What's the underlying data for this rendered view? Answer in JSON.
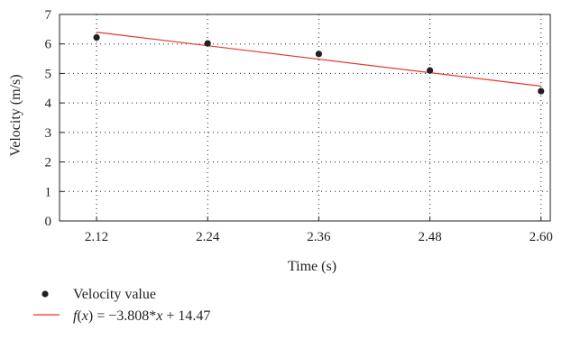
{
  "chart_data": {
    "type": "scatter",
    "title": "",
    "xlabel": "Time (s)",
    "ylabel": "Velocity (m/s)",
    "xlim": [
      2.08,
      2.61
    ],
    "ylim": [
      0,
      7
    ],
    "x_ticks": [
      "2.12",
      "2.24",
      "2.36",
      "2.48",
      "2.60"
    ],
    "y_ticks": [
      "0",
      "1",
      "2",
      "3",
      "4",
      "5",
      "6",
      "7"
    ],
    "grid": true,
    "legend_position": "bottom-left",
    "series": [
      {
        "name": "Velocity value",
        "type": "scatter",
        "color": "#231f20",
        "x": [
          2.12,
          2.24,
          2.36,
          2.48,
          2.6
        ],
        "y": [
          6.22,
          6.02,
          5.66,
          5.1,
          4.4
        ]
      },
      {
        "name": "f(x) = −3.808*x + 14.47",
        "legend_parts": {
          "fx": "f",
          "x1": "x",
          "mid": ") = −3.808*",
          "x2": "x",
          "tail": " + 14.47"
        },
        "type": "line",
        "color": "#e8392b",
        "slope": -3.808,
        "intercept": 14.47,
        "x_range": [
          2.12,
          2.6
        ]
      }
    ]
  }
}
